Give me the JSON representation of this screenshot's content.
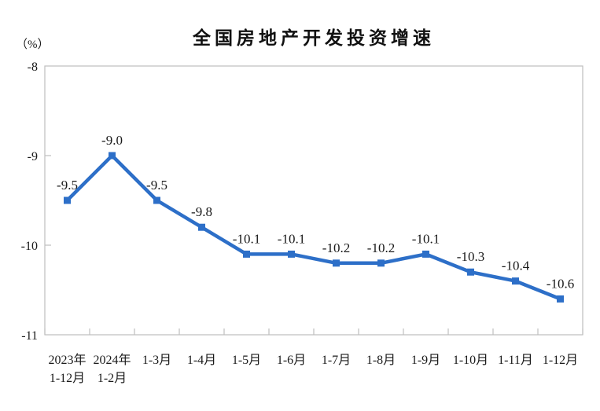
{
  "chart_data": {
    "type": "line",
    "title": "全国房地产开发投资增速",
    "ylabel": "（%）",
    "xlabel": "",
    "categories": [
      "2023年\n1-12月",
      "2024年\n1-2月",
      "1-3月",
      "1-4月",
      "1-5月",
      "1-6月",
      "1-7月",
      "1-8月",
      "1-9月",
      "1-10月",
      "1-11月",
      "1-12月"
    ],
    "values": [
      -9.5,
      -9.0,
      -9.5,
      -9.8,
      -10.1,
      -10.1,
      -10.2,
      -10.2,
      -10.1,
      -10.3,
      -10.4,
      -10.6
    ],
    "data_labels": [
      "-9.5",
      "-9.0",
      "-9.5",
      "-9.8",
      "-10.1",
      "-10.1",
      "-10.2",
      "-10.2",
      "-10.1",
      "-10.3",
      "-10.4",
      "-10.6"
    ],
    "ylim": [
      -11,
      -8
    ],
    "yticks": [
      -8,
      -9,
      -10,
      -11
    ],
    "ytick_labels": [
      "-8",
      "-9",
      "-10",
      "-11"
    ],
    "grid": false,
    "legend": "none",
    "marker": "square",
    "line_color": "#2D6FC8",
    "axis_color": "#BFBFBF",
    "text_color": "#1A1A1A"
  }
}
